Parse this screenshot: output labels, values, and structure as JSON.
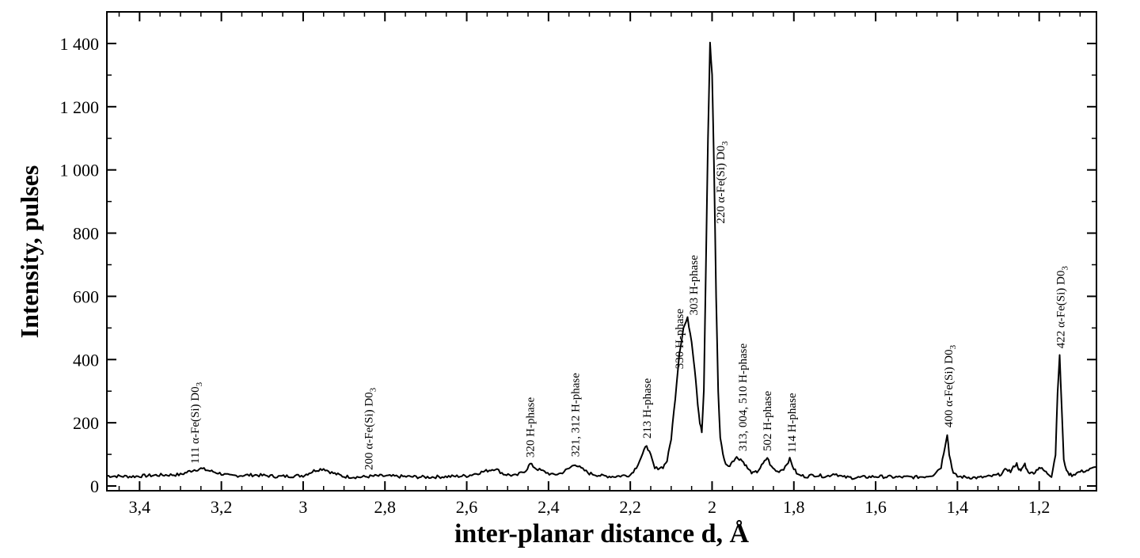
{
  "chart_data": {
    "type": "line",
    "title": "",
    "xlabel": "inter-planar distance d, Å",
    "ylabel": "Intensity, pulses",
    "xlim": [
      3.48,
      1.06
    ],
    "ylim": [
      -15,
      1500
    ],
    "x_reversed": true,
    "grid": false,
    "x_ticks": [
      {
        "value": 3.4,
        "label": "3,4"
      },
      {
        "value": 3.2,
        "label": "3,2"
      },
      {
        "value": 3.0,
        "label": "3"
      },
      {
        "value": 2.8,
        "label": "2,8"
      },
      {
        "value": 2.6,
        "label": "2,6"
      },
      {
        "value": 2.4,
        "label": "2,4"
      },
      {
        "value": 2.2,
        "label": "2,2"
      },
      {
        "value": 2.0,
        "label": "2"
      },
      {
        "value": 1.8,
        "label": "1,8"
      },
      {
        "value": 1.6,
        "label": "1,6"
      },
      {
        "value": 1.4,
        "label": "1,4"
      },
      {
        "value": 1.2,
        "label": "1,2"
      }
    ],
    "y_ticks": [
      {
        "value": 0,
        "label": "0"
      },
      {
        "value": 200,
        "label": "200"
      },
      {
        "value": 400,
        "label": "400"
      },
      {
        "value": 600,
        "label": "600"
      },
      {
        "value": 800,
        "label": "800"
      },
      {
        "value": 1000,
        "label": "1 000"
      },
      {
        "value": 1200,
        "label": "1 200"
      },
      {
        "value": 1400,
        "label": "1 400"
      }
    ],
    "series": [
      {
        "x": [
          3.48,
          3.42,
          3.36,
          3.3,
          3.27,
          3.25,
          3.22,
          3.18,
          3.12,
          3.06,
          3.0,
          2.97,
          2.95,
          2.93,
          2.9,
          2.86,
          2.82,
          2.76,
          2.7,
          2.64,
          2.6,
          2.56,
          2.53,
          2.51,
          2.48,
          2.455,
          2.445,
          2.43,
          2.41,
          2.39,
          2.37,
          2.35,
          2.335,
          2.32,
          2.3,
          2.27,
          2.24,
          2.2,
          2.185,
          2.17,
          2.16,
          2.15,
          2.14,
          2.12,
          2.11,
          2.1,
          2.09,
          2.08,
          2.07,
          2.06,
          2.05,
          2.045,
          2.04,
          2.035,
          2.03,
          2.025,
          2.02,
          2.015,
          2.01,
          2.005,
          2.0,
          1.995,
          1.99,
          1.985,
          1.98,
          1.97,
          1.96,
          1.95,
          1.94,
          1.93,
          1.92,
          1.91,
          1.9,
          1.89,
          1.875,
          1.865,
          1.855,
          1.84,
          1.825,
          1.81,
          1.8,
          1.79,
          1.77,
          1.75,
          1.72,
          1.7,
          1.68,
          1.65,
          1.6,
          1.55,
          1.5,
          1.48,
          1.46,
          1.44,
          1.43,
          1.425,
          1.42,
          1.41,
          1.4,
          1.38,
          1.35,
          1.32,
          1.3,
          1.29,
          1.28,
          1.27,
          1.26,
          1.255,
          1.25,
          1.245,
          1.24,
          1.235,
          1.23,
          1.22,
          1.21,
          1.2,
          1.19,
          1.18,
          1.17,
          1.16,
          1.155,
          1.15,
          1.145,
          1.14,
          1.13,
          1.12,
          1.1,
          1.08,
          1.06
        ],
        "y": [
          32,
          30,
          34,
          36,
          50,
          55,
          45,
          32,
          35,
          30,
          33,
          50,
          55,
          42,
          30,
          28,
          32,
          30,
          28,
          30,
          32,
          45,
          55,
          38,
          32,
          50,
          70,
          55,
          45,
          35,
          40,
          55,
          70,
          55,
          40,
          32,
          30,
          35,
          60,
          100,
          130,
          95,
          55,
          60,
          80,
          150,
          280,
          420,
          500,
          530,
          460,
          400,
          340,
          260,
          200,
          170,
          300,
          700,
          1100,
          1400,
          1300,
          1000,
          600,
          300,
          150,
          80,
          60,
          80,
          90,
          85,
          70,
          50,
          40,
          45,
          70,
          90,
          60,
          45,
          55,
          85,
          55,
          35,
          30,
          35,
          30,
          40,
          28,
          26,
          30,
          28,
          28,
          30,
          35,
          60,
          130,
          165,
          100,
          40,
          30,
          28,
          26,
          30,
          35,
          40,
          55,
          45,
          65,
          70,
          55,
          45,
          60,
          70,
          50,
          40,
          45,
          60,
          50,
          40,
          32,
          100,
          300,
          410,
          250,
          80,
          40,
          35,
          45,
          50,
          60
        ]
      }
    ],
    "annotations": [
      {
        "x": 3.265,
        "y": 60,
        "text": "111 α-Fe(Si) D0",
        "sub": "3"
      },
      {
        "x": 2.84,
        "y": 40,
        "text": "200 α-Fe(Si) D0",
        "sub": "3"
      },
      {
        "x": 2.445,
        "y": 80,
        "text": "320 H-phase",
        "sub": ""
      },
      {
        "x": 2.335,
        "y": 82,
        "text": "321, 312 H-phase",
        "sub": ""
      },
      {
        "x": 2.16,
        "y": 140,
        "text": "213 H-phase",
        "sub": ""
      },
      {
        "x": 2.08,
        "y": 360,
        "text": "330 H-phase",
        "sub": ""
      },
      {
        "x": 2.045,
        "y": 530,
        "text": "303 H-phase",
        "sub": ""
      },
      {
        "x": 1.98,
        "y": 820,
        "text": "220 α-Fe(Si) D0",
        "sub": "3"
      },
      {
        "x": 1.925,
        "y": 100,
        "text": "313, 004, 510 H-phase",
        "sub": ""
      },
      {
        "x": 1.865,
        "y": 100,
        "text": "502 H-phase",
        "sub": ""
      },
      {
        "x": 1.805,
        "y": 95,
        "text": "114 H-phase",
        "sub": ""
      },
      {
        "x": 1.422,
        "y": 175,
        "text": "400 α-Fe(Si) D0",
        "sub": "3"
      },
      {
        "x": 1.148,
        "y": 425,
        "text": "422 α-Fe(Si) D0",
        "sub": "3"
      }
    ]
  }
}
